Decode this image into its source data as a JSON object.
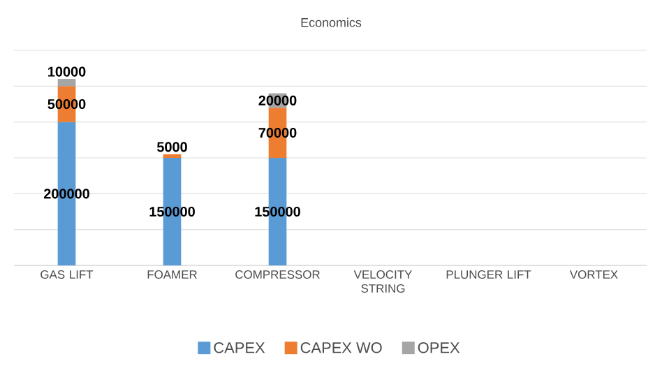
{
  "chart_data": {
    "type": "bar",
    "title": "Economics",
    "stacked": true,
    "categories": [
      "GAS LIFT",
      "FOAMER",
      "COMPRESSOR",
      "VELOCITY STRING",
      "PLUNGER LIFT",
      "VORTEX"
    ],
    "series": [
      {
        "name": "CAPEX",
        "color": "#5b9bd5",
        "values": [
          200000,
          150000,
          150000,
          null,
          null,
          null
        ]
      },
      {
        "name": "CAPEX WO",
        "color": "#ed7d31",
        "values": [
          50000,
          5000,
          70000,
          null,
          null,
          null
        ]
      },
      {
        "name": "OPEX",
        "color": "#a5a5a5",
        "values": [
          10000,
          null,
          20000,
          null,
          null,
          null
        ]
      }
    ],
    "ylim": [
      0,
      300000
    ],
    "yticks": [
      {
        "value": 0,
        "label": null
      },
      {
        "value": 50000,
        "label": null
      },
      {
        "value": 100000,
        "label": null
      },
      {
        "value": 150000,
        "label": null
      },
      {
        "value": 200000,
        "label": null
      },
      {
        "value": 250000,
        "label": null
      },
      {
        "value": 300000,
        "label": null
      }
    ],
    "tick_labels": "x",
    "grid": "y",
    "legend": "bottom",
    "data_labels": true
  }
}
